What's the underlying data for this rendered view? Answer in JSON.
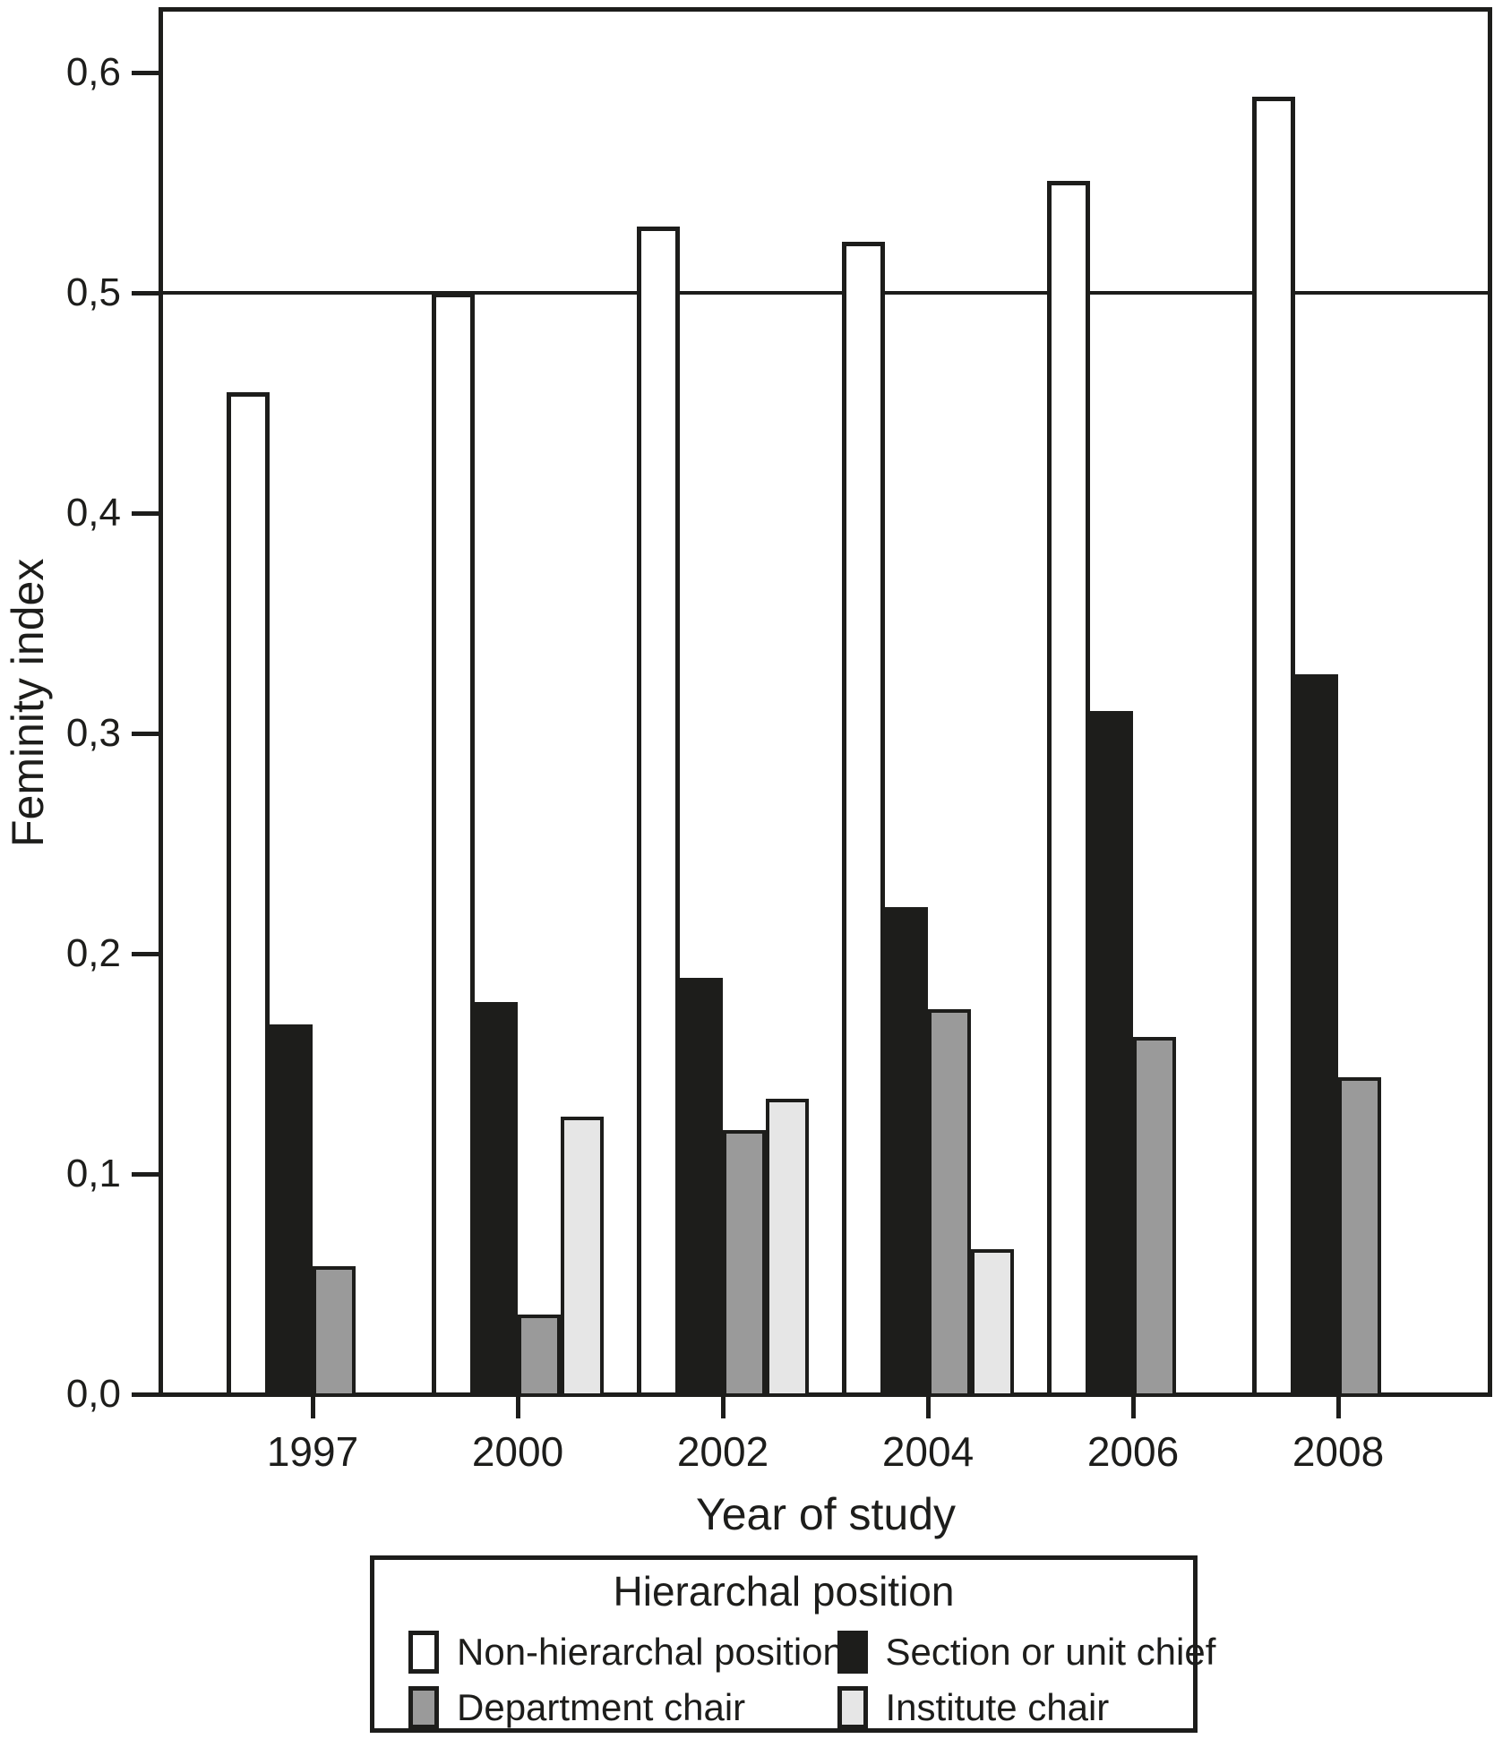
{
  "chart_data": {
    "type": "bar",
    "title": "",
    "xlabel": "Year of study",
    "ylabel": "Feminity index",
    "categories": [
      "1997",
      "2000",
      "2002",
      "2004",
      "2006",
      "2008"
    ],
    "series": [
      {
        "name": "Non-hierarchal position",
        "color": "#ffffff",
        "values": [
          0.455,
          0.5,
          0.53,
          0.523,
          0.551,
          0.589
        ]
      },
      {
        "name": "Section or unit chief",
        "color": "#1d1d1b",
        "values": [
          0.168,
          0.178,
          0.189,
          0.221,
          0.31,
          0.327
        ]
      },
      {
        "name": "Department chair",
        "color": "#9a9a9a",
        "values": [
          0.058,
          0.036,
          0.12,
          0.175,
          0.162,
          0.144
        ]
      },
      {
        "name": "Institute chair",
        "color": "#e6e6e6",
        "values": [
          null,
          0.126,
          0.134,
          0.066,
          null,
          null
        ]
      }
    ],
    "y_ticks": [
      {
        "label": "0,0",
        "value": 0.0
      },
      {
        "label": "0,1",
        "value": 0.1
      },
      {
        "label": "0,2",
        "value": 0.2
      },
      {
        "label": "0,3",
        "value": 0.3
      },
      {
        "label": "0,4",
        "value": 0.4
      },
      {
        "label": "0,5",
        "value": 0.5
      },
      {
        "label": "0,6",
        "value": 0.6
      }
    ],
    "ylim": [
      0.0,
      0.631
    ],
    "reference_line": 0.5,
    "grid": false,
    "legend_position": "bottom",
    "legend": {
      "title": "Hierarchal position"
    },
    "decimal_separator": ",",
    "axis_color": "#1d1d1b"
  }
}
